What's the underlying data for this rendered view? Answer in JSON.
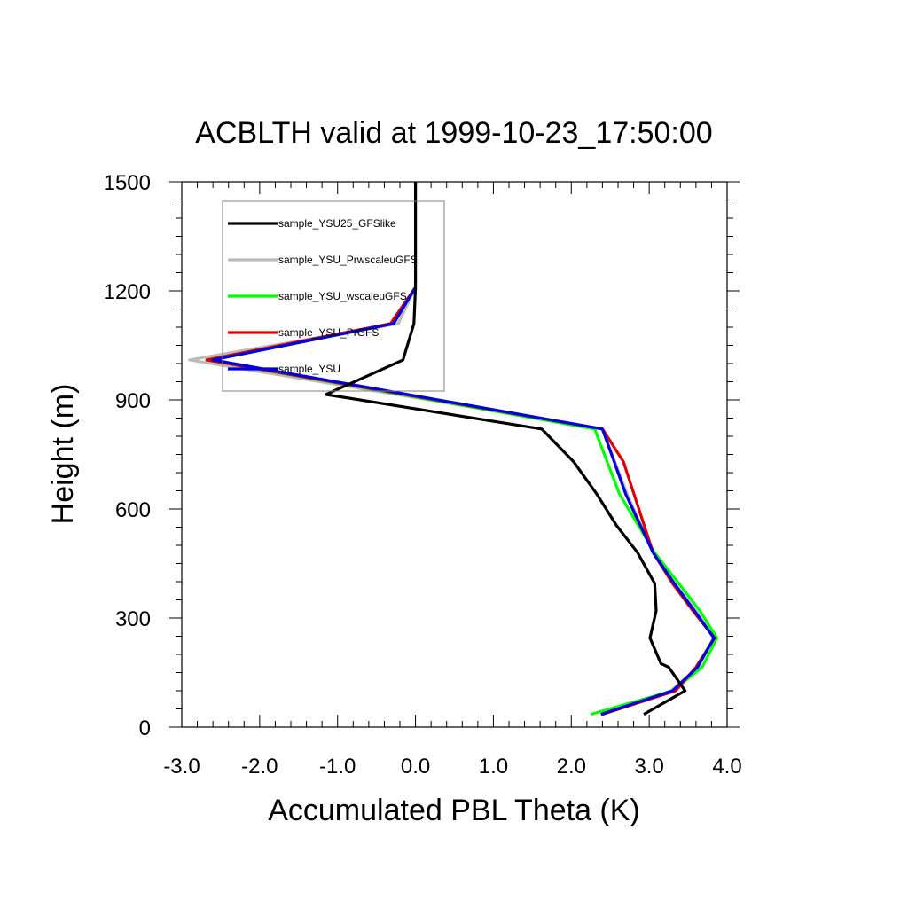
{
  "chart_data": {
    "type": "line",
    "title": "ACBLTH valid at 1999-10-23_17:50:00",
    "xlabel": "Accumulated PBL Theta (K)",
    "ylabel": "Height (m)",
    "xlim": [
      -3.0,
      4.0
    ],
    "ylim": [
      0,
      1500
    ],
    "x_ticks": [
      "-3.0",
      "-2.0",
      "-1.0",
      "0.0",
      "1.0",
      "2.0",
      "3.0",
      "4.0"
    ],
    "y_ticks": [
      "0",
      "300",
      "600",
      "900",
      "1200",
      "1500"
    ],
    "x_tick_values": [
      -3,
      -2,
      -1,
      0,
      1,
      2,
      3,
      4
    ],
    "y_tick_values": [
      0,
      300,
      600,
      900,
      1200,
      1500
    ],
    "grid": false,
    "legend_position": "top-left",
    "series": [
      {
        "name": "sample_YSU25_GFSlike",
        "color": "#000000",
        "x": [
          2.93,
          3.46,
          3.25,
          3.15,
          3.01,
          3.09,
          3.07,
          2.85,
          2.58,
          2.33,
          2.03,
          1.62,
          -1.15,
          -0.16,
          -0.02,
          0.0,
          0.0,
          0.0
        ],
        "y": [
          35,
          100,
          165,
          175,
          245,
          320,
          395,
          480,
          555,
          640,
          730,
          820,
          915,
          1010,
          1110,
          1210,
          1300,
          1500
        ]
      },
      {
        "name": "sample_YSU_PrwscaleuGFS",
        "color": "#bbbbbb",
        "x": [
          2.4,
          3.28,
          3.63,
          3.83,
          3.6,
          3.33,
          3.05,
          2.72,
          2.4,
          -2.9,
          -0.22,
          0.0
        ],
        "y": [
          35,
          100,
          165,
          245,
          320,
          395,
          480,
          640,
          820,
          1010,
          1110,
          1210
        ]
      },
      {
        "name": "sample_YSU_wscaleuGFS",
        "color": "#00ff00",
        "x": [
          2.25,
          3.3,
          3.68,
          3.87,
          3.65,
          3.38,
          3.07,
          2.62,
          2.3,
          -2.68,
          -0.3,
          0.0
        ],
        "y": [
          35,
          100,
          165,
          245,
          320,
          395,
          480,
          640,
          820,
          1010,
          1110,
          1210
        ]
      },
      {
        "name": "sample_YSU_PrGFS",
        "color": "#dd0000",
        "x": [
          2.4,
          3.34,
          3.6,
          3.84,
          3.56,
          3.3,
          3.05,
          2.67,
          2.4,
          -2.68,
          -0.32,
          0.0
        ],
        "y": [
          35,
          100,
          165,
          245,
          320,
          395,
          480,
          730,
          820,
          1010,
          1110,
          1210
        ]
      },
      {
        "name": "sample_YSU",
        "color": "#0000dd",
        "x": [
          2.38,
          3.3,
          3.62,
          3.83,
          3.58,
          3.32,
          3.05,
          2.7,
          2.4,
          -2.6,
          -0.28,
          0.0
        ],
        "y": [
          35,
          100,
          165,
          245,
          320,
          395,
          480,
          640,
          820,
          1010,
          1110,
          1210
        ]
      }
    ]
  }
}
